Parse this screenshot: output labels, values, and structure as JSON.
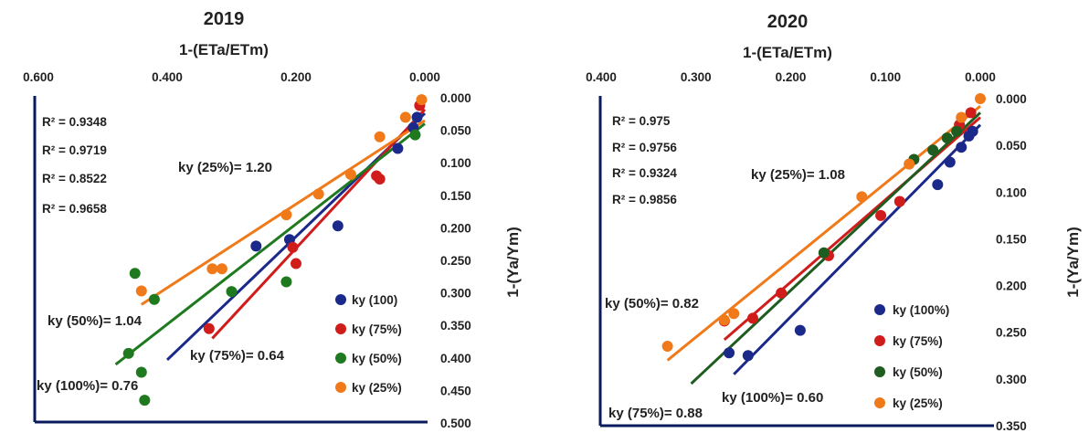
{
  "chart_data": [
    {
      "type": "scatter",
      "title": "2019",
      "xlabel": "1-(ETa/ETm)",
      "ylabel": "1-(Ya/Ym)",
      "xlim": [
        0.6,
        0.0
      ],
      "ylim": [
        0.0,
        0.5
      ],
      "x_ticks": [
        "0.600",
        "0.400",
        "0.200",
        "0.000"
      ],
      "y_ticks": [
        "0.000",
        "0.050",
        "0.100",
        "0.150",
        "0.200",
        "0.250",
        "0.300",
        "0.350",
        "0.400",
        "0.450",
        "0.500"
      ],
      "r2_labels": [
        "R² = 0.9348",
        "R² = 0.9719",
        "R² = 0.8522",
        "R² = 0.9658"
      ],
      "annotations": [
        "ky (25%)= 1.20",
        "ky (50%)= 1.04",
        "ky (75%)= 0.64",
        "ky (100%)= 0.76"
      ],
      "legend": "right",
      "series": [
        {
          "name": "ky (100)",
          "color": "#1b2a8a",
          "points": [
            [
              0.262,
              0.228
            ],
            [
              0.21,
              0.218
            ],
            [
              0.135,
              0.197
            ],
            [
              0.042,
              0.078
            ],
            [
              0.018,
              0.046
            ],
            [
              0.012,
              0.03
            ]
          ],
          "fit": [
            [
              0.4,
              0.403
            ],
            [
              0.0,
              0.024
            ]
          ]
        },
        {
          "name": "ky (75%)",
          "color": "#d11c1c",
          "points": [
            [
              0.335,
              0.355
            ],
            [
              0.2,
              0.255
            ],
            [
              0.205,
              0.23
            ],
            [
              0.075,
              0.12
            ],
            [
              0.07,
              0.125
            ],
            [
              0.008,
              0.012
            ]
          ],
          "fit": [
            [
              0.33,
              0.37
            ],
            [
              0.0,
              0.018
            ]
          ]
        },
        {
          "name": "ky (50%)",
          "color": "#1f7a1f",
          "points": [
            [
              0.46,
              0.393
            ],
            [
              0.44,
              0.422
            ],
            [
              0.435,
              0.465
            ],
            [
              0.45,
              0.27
            ],
            [
              0.42,
              0.31
            ],
            [
              0.3,
              0.298
            ],
            [
              0.215,
              0.283
            ],
            [
              0.015,
              0.057
            ]
          ],
          "fit": [
            [
              0.48,
              0.41
            ],
            [
              0.0,
              0.04
            ]
          ]
        },
        {
          "name": "ky (25%)",
          "color": "#f07a19",
          "points": [
            [
              0.44,
              0.297
            ],
            [
              0.33,
              0.263
            ],
            [
              0.315,
              0.263
            ],
            [
              0.215,
              0.18
            ],
            [
              0.165,
              0.148
            ],
            [
              0.115,
              0.118
            ],
            [
              0.07,
              0.06
            ],
            [
              0.03,
              0.03
            ],
            [
              0.005,
              0.003
            ]
          ],
          "fit": [
            [
              0.44,
              0.318
            ],
            [
              0.0,
              0.035
            ]
          ]
        }
      ]
    },
    {
      "type": "scatter",
      "title": "2020",
      "xlabel": "1-(ETa/ETm)",
      "ylabel": "1-(Ya/Ym)",
      "xlim": [
        0.4,
        0.0
      ],
      "ylim": [
        0.0,
        0.35
      ],
      "x_ticks": [
        "0.400",
        "0.300",
        "0.200",
        "0.100",
        "0.000"
      ],
      "y_ticks": [
        "0.000",
        "0.050",
        "0.100",
        "0.150",
        "0.200",
        "0.250",
        "0.300",
        "0.350"
      ],
      "r2_labels": [
        "R² = 0.975",
        "R² = 0.9756",
        "R² = 0.9324",
        "R² = 0.9856"
      ],
      "annotations": [
        "ky (25%)= 1.08",
        "ky (50%)= 0.82",
        "ky (75%)= 0.88",
        "ky (100%)= 0.60"
      ],
      "legend": "right",
      "series": [
        {
          "name": "ky (100%)",
          "color": "#1b2a8a",
          "points": [
            [
              0.265,
              0.272
            ],
            [
              0.245,
              0.275
            ],
            [
              0.19,
              0.248
            ],
            [
              0.045,
              0.092
            ],
            [
              0.032,
              0.068
            ],
            [
              0.02,
              0.052
            ],
            [
              0.012,
              0.04
            ],
            [
              0.008,
              0.035
            ]
          ],
          "fit": [
            [
              0.26,
              0.295
            ],
            [
              0.0,
              0.028
            ]
          ]
        },
        {
          "name": "ky (75%)",
          "color": "#d11c1c",
          "points": [
            [
              0.27,
              0.238
            ],
            [
              0.24,
              0.235
            ],
            [
              0.21,
              0.208
            ],
            [
              0.16,
              0.168
            ],
            [
              0.105,
              0.125
            ],
            [
              0.085,
              0.11
            ],
            [
              0.022,
              0.028
            ],
            [
              0.01,
              0.015
            ]
          ],
          "fit": [
            [
              0.27,
              0.258
            ],
            [
              0.0,
              0.02
            ]
          ]
        },
        {
          "name": "ky (50%)",
          "color": "#1f5c1f",
          "points": [
            [
              0.165,
              0.165
            ],
            [
              0.07,
              0.065
            ],
            [
              0.05,
              0.055
            ],
            [
              0.035,
              0.042
            ],
            [
              0.025,
              0.035
            ]
          ],
          "fit": [
            [
              0.305,
              0.305
            ],
            [
              0.0,
              0.015
            ]
          ]
        },
        {
          "name": "ky (25%)",
          "color": "#f07a19",
          "points": [
            [
              0.33,
              0.265
            ],
            [
              0.27,
              0.237
            ],
            [
              0.26,
              0.23
            ],
            [
              0.125,
              0.105
            ],
            [
              0.075,
              0.07
            ],
            [
              0.02,
              0.02
            ],
            [
              0.0,
              0.0
            ]
          ],
          "fit": [
            [
              0.33,
              0.28
            ],
            [
              0.0,
              0.008
            ]
          ]
        }
      ]
    }
  ]
}
